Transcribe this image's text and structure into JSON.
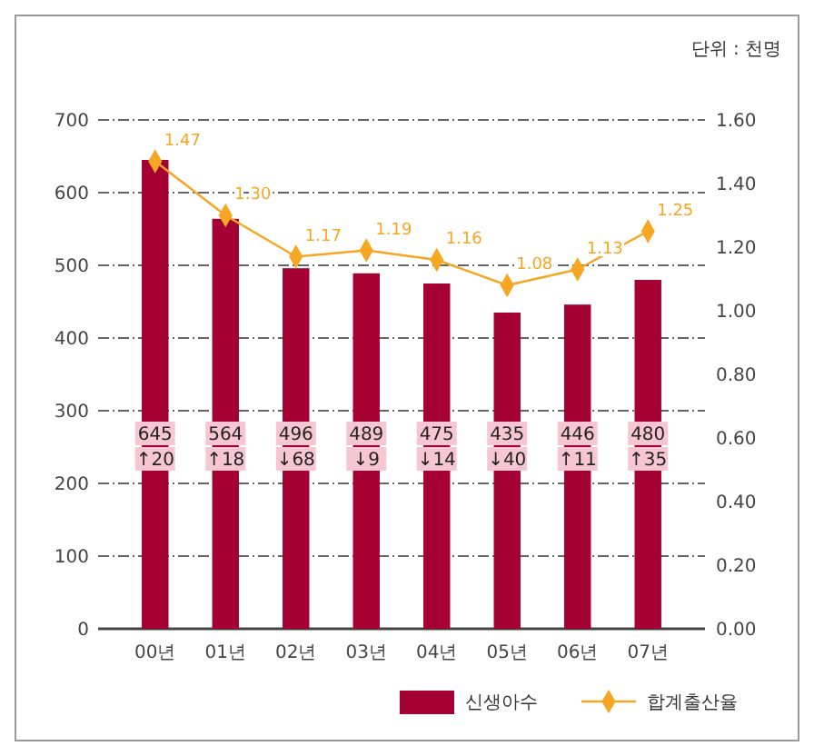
{
  "chart_data": {
    "type": "bar",
    "categories": [
      "00년",
      "01년",
      "02년",
      "03년",
      "04년",
      "05년",
      "06년",
      "07년"
    ],
    "series": [
      {
        "name": "신생아수",
        "color": "#a50034",
        "values": [
          645,
          564,
          496,
          489,
          475,
          435,
          446,
          480
        ],
        "value_labels": [
          "645",
          "564",
          "496",
          "489",
          "475",
          "435",
          "446",
          "480"
        ]
      },
      {
        "name": "합계출산율",
        "type": "line",
        "axis": "y2",
        "color": "#f5a623",
        "marker": "diamond",
        "values": [
          1.47,
          1.3,
          1.17,
          1.19,
          1.16,
          1.08,
          1.13,
          1.25
        ],
        "value_labels": [
          "1.47",
          "1.30",
          "1.17",
          "1.19",
          "1.16",
          "1.08",
          "1.13",
          "1.25"
        ]
      }
    ],
    "ylim": [
      0,
      700
    ],
    "yticks": [
      0,
      100,
      200,
      300,
      400,
      500,
      600,
      700
    ],
    "y2lim": [
      0,
      1.6
    ],
    "y2ticks": [
      {
        "value": 0,
        "label": "0.00"
      },
      {
        "value": 0.2,
        "label": "0.20"
      },
      {
        "value": 0.4,
        "label": "0.40"
      },
      {
        "value": 0.6,
        "label": "0.60"
      },
      {
        "value": 0.8,
        "label": "0.80"
      },
      {
        "value": 1,
        "label": "1.00"
      },
      {
        "value": 1.2,
        "label": "1.20"
      },
      {
        "value": 1.4,
        "label": "1.40"
      },
      {
        "value": 1.6,
        "label": "1.60"
      }
    ],
    "grid": "y",
    "legend": "bottom right",
    "annotations": [
      "단위 : 천명",
      "↑20",
      "↑18",
      "↓68",
      "↓9",
      "↓14",
      "↓40",
      "↑11",
      "↑35"
    ]
  }
}
